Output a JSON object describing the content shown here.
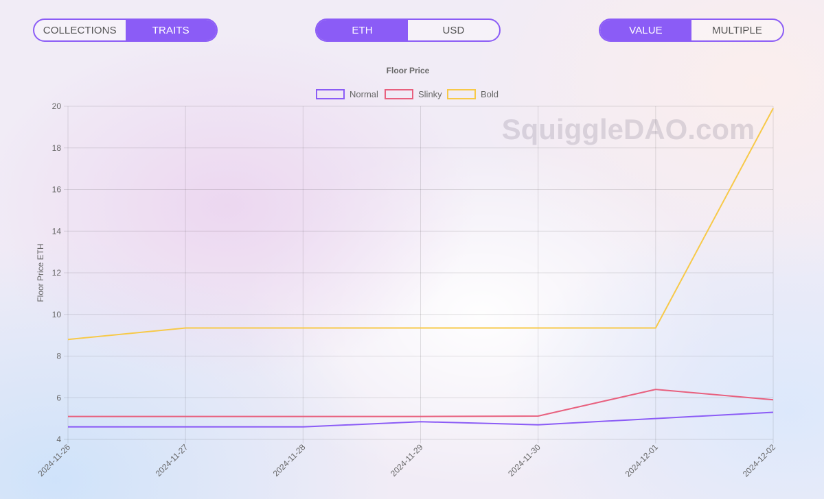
{
  "controls": {
    "mode": {
      "options": [
        "COLLECTIONS",
        "TRAITS"
      ],
      "selected": "TRAITS"
    },
    "currency": {
      "options": [
        "ETH",
        "USD"
      ],
      "selected": "ETH"
    },
    "metric": {
      "options": [
        "VALUE",
        "MULTIPLE"
      ],
      "selected": "VALUE"
    }
  },
  "watermark": "SquiggleDAO.com",
  "chart_data": {
    "type": "line",
    "title": "Floor Price",
    "xlabel": "",
    "ylabel": "Floor Price ETH",
    "ylim": [
      4,
      20
    ],
    "yticks": [
      4,
      6,
      8,
      10,
      12,
      14,
      16,
      18,
      20
    ],
    "grid": true,
    "legend_position": "top-center",
    "x": [
      "2024-11-26",
      "2024-11-27",
      "2024-11-28",
      "2024-11-29",
      "2024-11-30",
      "2024-12-01",
      "2024-12-02"
    ],
    "series": [
      {
        "name": "Normal",
        "color": "#8b5cf6",
        "values": [
          4.6,
          4.6,
          4.6,
          4.85,
          4.7,
          5.0,
          5.3
        ]
      },
      {
        "name": "Slinky",
        "color": "#e8607e",
        "values": [
          5.1,
          5.1,
          5.1,
          5.1,
          5.12,
          6.4,
          5.9
        ]
      },
      {
        "name": "Bold",
        "color": "#f7c948",
        "values": [
          8.8,
          9.35,
          9.35,
          9.35,
          9.35,
          9.35,
          19.9
        ]
      }
    ]
  }
}
